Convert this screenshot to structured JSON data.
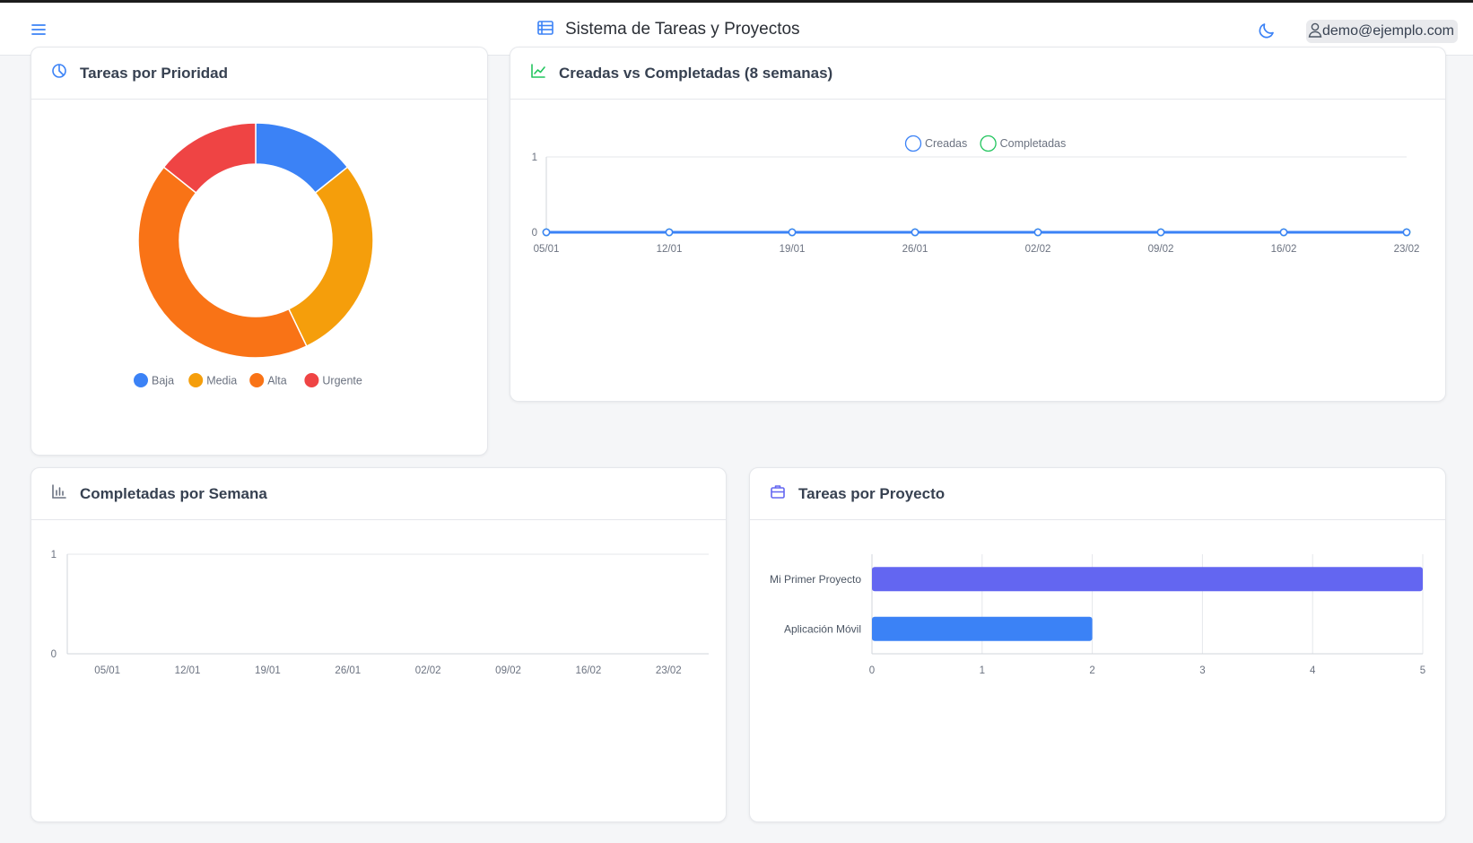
{
  "app": {
    "title": "Sistema de Tareas y Proyectos",
    "user_email": "demo@ejemplo.com"
  },
  "icons": {
    "menu": "hamburger-menu-icon",
    "brand": "list-table-icon",
    "theme": "moon-icon",
    "user": "user-icon"
  },
  "colors": {
    "blue": "#3b82f6",
    "amber": "#f59e0b",
    "orange": "#f97316",
    "red": "#ef4444",
    "green": "#22c55e",
    "indigo": "#6366f1"
  },
  "cards": {
    "priority": {
      "title": "Tareas por Prioridad",
      "icon": "pie-chart-icon"
    },
    "created_vs_completed": {
      "title": "Creadas vs Completadas (8 semanas)",
      "icon": "trend-line-icon"
    },
    "weekly_completed": {
      "title": "Completadas por Semana",
      "icon": "bar-chart-icon"
    },
    "by_project": {
      "title": "Tareas por Proyecto",
      "icon": "briefcase-icon"
    }
  },
  "chart_data": [
    {
      "type": "pie",
      "title": "Tareas por Prioridad",
      "categories": [
        "Baja",
        "Media",
        "Alta",
        "Urgente"
      ],
      "values": [
        1,
        2,
        3,
        1
      ],
      "colors": [
        "#3b82f6",
        "#f59e0b",
        "#f97316",
        "#ef4444"
      ],
      "legend": "bottom"
    },
    {
      "type": "line",
      "title": "Creadas vs Completadas (8 semanas)",
      "categories": [
        "05/01",
        "12/01",
        "19/01",
        "26/01",
        "02/02",
        "09/02",
        "16/02",
        "23/02"
      ],
      "series": [
        {
          "name": "Creadas",
          "values": [
            0,
            0,
            0,
            0,
            0,
            0,
            0,
            0
          ],
          "color": "#3b82f6"
        },
        {
          "name": "Completadas",
          "values": [
            0,
            0,
            0,
            0,
            0,
            0,
            0,
            0
          ],
          "color": "#22c55e"
        }
      ],
      "ylim": [
        0,
        1
      ],
      "yticks": [
        "0",
        "1"
      ],
      "grid": true,
      "legend": "top"
    },
    {
      "type": "bar",
      "title": "Completadas por Semana",
      "categories": [
        "05/01",
        "12/01",
        "19/01",
        "26/01",
        "02/02",
        "09/02",
        "16/02",
        "23/02"
      ],
      "values": [
        0,
        0,
        0,
        0,
        0,
        0,
        0,
        0
      ],
      "ylim": [
        0,
        1
      ],
      "yticks": [
        "0",
        "1"
      ],
      "grid": true
    },
    {
      "type": "bar",
      "orientation": "horizontal",
      "title": "Tareas por Proyecto",
      "categories": [
        "Mi Primer Proyecto",
        "Aplicación Móvil"
      ],
      "values": [
        5,
        2
      ],
      "colors": [
        "#6366f1",
        "#3b82f6"
      ],
      "xlim": [
        0,
        5
      ],
      "xticks": [
        "0",
        "1",
        "2",
        "3",
        "4",
        "5"
      ],
      "grid": true
    }
  ]
}
